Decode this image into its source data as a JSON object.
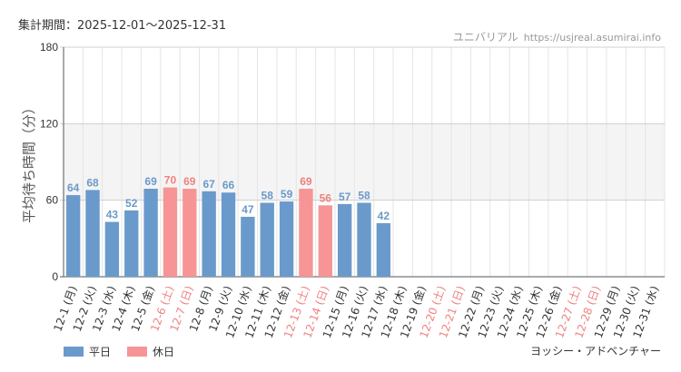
{
  "header": {
    "period": "集計期間：2025-12-01～2025-12-31",
    "site_name": "ユニバリアル",
    "site_url": "https://usjreal.asumirai.info"
  },
  "footer": {
    "attraction": "ヨッシー・アドベンチャー"
  },
  "colors": {
    "weekday": "#6a9acb",
    "holiday": "#f79596",
    "holiday_text": "#f08080",
    "band": "#f4f4f4",
    "grid": "#e5e5e5"
  },
  "chart_data": {
    "type": "bar",
    "ylabel": "平均待ち時間（分）",
    "ylim": [
      0,
      180
    ],
    "yticks": [
      0,
      60,
      120,
      180
    ],
    "categories": [
      "12-1 (月)",
      "12-2 (火)",
      "12-3 (水)",
      "12-4 (木)",
      "12-5 (金)",
      "12-6 (土)",
      "12-7 (日)",
      "12-8 (月)",
      "12-9 (火)",
      "12-10 (水)",
      "12-11 (木)",
      "12-12 (金)",
      "12-13 (土)",
      "12-14 (日)",
      "12-15 (月)",
      "12-16 (火)",
      "12-17 (水)",
      "12-18 (木)",
      "12-19 (金)",
      "12-20 (土)",
      "12-21 (日)",
      "12-22 (月)",
      "12-23 (火)",
      "12-24 (水)",
      "12-25 (木)",
      "12-26 (金)",
      "12-27 (土)",
      "12-28 (日)",
      "12-29 (月)",
      "12-30 (火)",
      "12-31 (水)"
    ],
    "values": [
      64,
      68,
      43,
      52,
      69,
      70,
      69,
      67,
      66,
      47,
      58,
      59,
      69,
      56,
      57,
      58,
      42,
      null,
      null,
      null,
      null,
      null,
      null,
      null,
      null,
      null,
      null,
      null,
      null,
      null,
      null
    ],
    "day_type": [
      "weekday",
      "weekday",
      "weekday",
      "weekday",
      "weekday",
      "holiday",
      "holiday",
      "weekday",
      "weekday",
      "weekday",
      "weekday",
      "weekday",
      "holiday",
      "holiday",
      "weekday",
      "weekday",
      "weekday",
      "weekday",
      "weekday",
      "holiday",
      "holiday",
      "weekday",
      "weekday",
      "weekday",
      "weekday",
      "weekday",
      "holiday",
      "holiday",
      "weekday",
      "weekday",
      "weekday"
    ],
    "legend": [
      {
        "name": "平日",
        "type": "weekday"
      },
      {
        "name": "休日",
        "type": "holiday"
      }
    ],
    "legend_position": "bottom-left"
  }
}
